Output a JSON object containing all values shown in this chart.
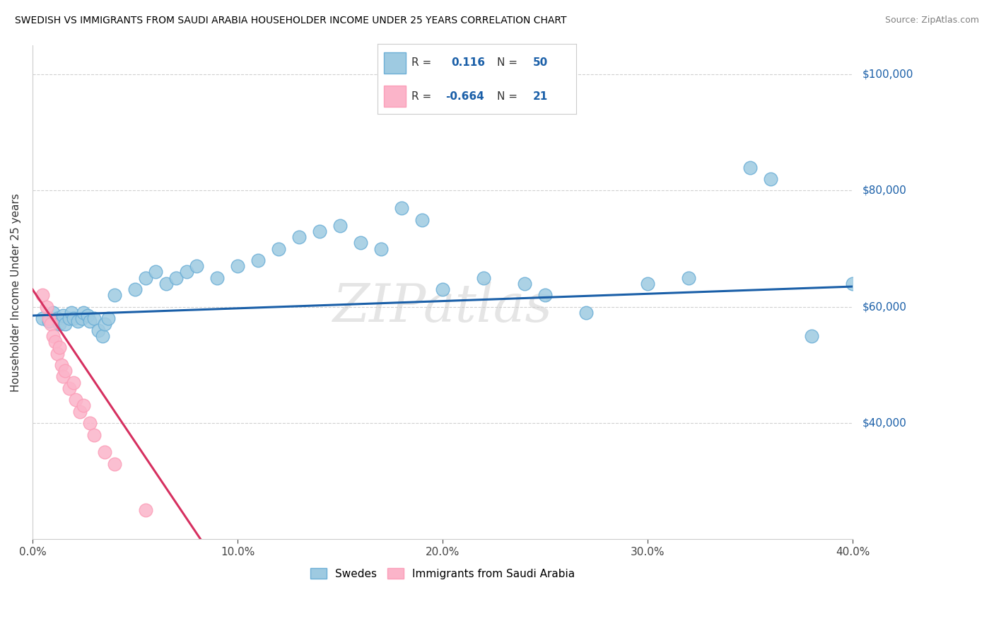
{
  "title": "SWEDISH VS IMMIGRANTS FROM SAUDI ARABIA HOUSEHOLDER INCOME UNDER 25 YEARS CORRELATION CHART",
  "source": "Source: ZipAtlas.com",
  "ylabel": "Householder Income Under 25 years",
  "x_min": 0.0,
  "x_max": 0.4,
  "y_min": 20000,
  "y_max": 105000,
  "yticks": [
    40000,
    60000,
    80000,
    100000
  ],
  "ytick_labels": [
    "$40,000",
    "$60,000",
    "$80,000",
    "$100,000"
  ],
  "xticks": [
    0.0,
    0.1,
    0.2,
    0.3,
    0.4
  ],
  "xtick_labels": [
    "0.0%",
    "10.0%",
    "20.0%",
    "30.0%",
    "40.0%"
  ],
  "blue_R": 0.116,
  "blue_N": 50,
  "pink_R": -0.664,
  "pink_N": 21,
  "blue_dot_color": "#9ecae1",
  "blue_edge_color": "#6baed6",
  "pink_dot_color": "#fbb4c9",
  "pink_edge_color": "#fb9eb8",
  "blue_line_color": "#1a5fa8",
  "pink_line_color": "#d63060",
  "legend_label_blue": "Swedes",
  "legend_label_pink": "Immigrants from Saudi Arabia",
  "blue_line_x0": 0.0,
  "blue_line_x1": 0.4,
  "blue_line_y0": 58500,
  "blue_line_y1": 63500,
  "pink_line_x0": 0.0,
  "pink_line_x1": 0.082,
  "pink_line_y0": 63000,
  "pink_line_y1": 20000,
  "blue_scatter_x": [
    0.005,
    0.008,
    0.01,
    0.012,
    0.013,
    0.015,
    0.016,
    0.018,
    0.019,
    0.02,
    0.022,
    0.024,
    0.025,
    0.027,
    0.028,
    0.03,
    0.032,
    0.034,
    0.035,
    0.037,
    0.04,
    0.05,
    0.055,
    0.06,
    0.065,
    0.07,
    0.075,
    0.08,
    0.09,
    0.1,
    0.11,
    0.12,
    0.13,
    0.14,
    0.15,
    0.16,
    0.17,
    0.18,
    0.19,
    0.2,
    0.22,
    0.24,
    0.25,
    0.27,
    0.3,
    0.32,
    0.35,
    0.36,
    0.38,
    0.4
  ],
  "blue_scatter_y": [
    58000,
    57500,
    59000,
    58000,
    57000,
    58500,
    57000,
    58000,
    59000,
    58000,
    57500,
    58000,
    59000,
    58500,
    57500,
    58000,
    56000,
    55000,
    57000,
    58000,
    62000,
    63000,
    65000,
    66000,
    64000,
    65000,
    66000,
    67000,
    65000,
    67000,
    68000,
    70000,
    72000,
    73000,
    74000,
    71000,
    70000,
    77000,
    75000,
    63000,
    65000,
    64000,
    62000,
    59000,
    64000,
    65000,
    84000,
    82000,
    55000,
    64000
  ],
  "pink_scatter_x": [
    0.005,
    0.007,
    0.008,
    0.009,
    0.01,
    0.011,
    0.012,
    0.013,
    0.014,
    0.015,
    0.016,
    0.018,
    0.02,
    0.021,
    0.023,
    0.025,
    0.028,
    0.03,
    0.035,
    0.04,
    0.055
  ],
  "pink_scatter_y": [
    62000,
    60000,
    58000,
    57000,
    55000,
    54000,
    52000,
    53000,
    50000,
    48000,
    49000,
    46000,
    47000,
    44000,
    42000,
    43000,
    40000,
    38000,
    35000,
    33000,
    25000
  ]
}
